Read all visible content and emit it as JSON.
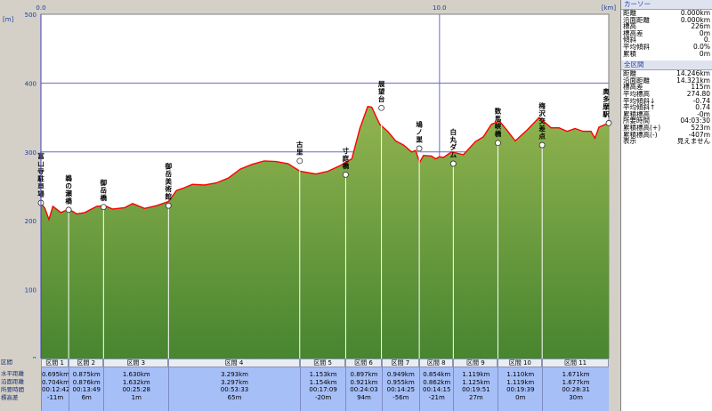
{
  "chart_data": {
    "type": "area",
    "title": "",
    "xlabel": "",
    "ylabel": "",
    "y_unit": "[m]",
    "x_unit": "[km]",
    "xlim": [
      0.0,
      14.246
    ],
    "ylim": [
      0,
      500
    ],
    "y_ticks": [
      "0",
      "100",
      "200",
      "300",
      "400",
      "500"
    ],
    "x_ticks": [
      {
        "value": 0.0,
        "label": "0.0"
      },
      {
        "value": 10.0,
        "label": "10.0"
      }
    ],
    "grid": true,
    "profile": {
      "x": [
        0.0,
        0.1,
        0.2,
        0.3,
        0.5,
        0.7,
        0.9,
        1.1,
        1.4,
        1.6,
        1.8,
        2.1,
        2.3,
        2.6,
        2.9,
        3.2,
        3.4,
        3.6,
        3.8,
        4.1,
        4.4,
        4.7,
        5.0,
        5.3,
        5.6,
        5.9,
        6.2,
        6.5,
        6.9,
        7.2,
        7.5,
        7.8,
        8.0,
        8.2,
        8.3,
        8.5,
        8.7,
        8.9,
        9.1,
        9.3,
        9.4,
        9.5,
        9.6,
        9.8,
        9.9,
        10.0,
        10.1,
        10.3,
        10.6,
        10.9,
        11.1,
        11.3,
        11.5,
        11.7,
        11.9,
        12.2,
        12.5,
        12.8,
        13.0,
        13.2,
        13.4,
        13.6,
        13.8,
        13.9,
        14.0,
        14.246
      ],
      "y": [
        226,
        218,
        202,
        221,
        212,
        217,
        210,
        212,
        221,
        222,
        217,
        219,
        225,
        218,
        222,
        228,
        244,
        248,
        253,
        252,
        255,
        262,
        275,
        282,
        287,
        286,
        283,
        272,
        268,
        272,
        280,
        290,
        334,
        366,
        365,
        340,
        330,
        316,
        310,
        300,
        302,
        285,
        295,
        294,
        290,
        293,
        292,
        300,
        296,
        315,
        322,
        340,
        345,
        331,
        316,
        332,
        350,
        335,
        335,
        330,
        334,
        330,
        330,
        320,
        336,
        342
      ]
    },
    "waypoints": [
      {
        "x": 0.0,
        "y": 226,
        "label": "富山寺駐車場"
      },
      {
        "x": 0.695,
        "y": 216,
        "label": "鵜の瀬橋"
      },
      {
        "x": 1.57,
        "y": 220,
        "label": "御岳橋"
      },
      {
        "x": 3.2,
        "y": 222,
        "label": "御岳美術館"
      },
      {
        "x": 6.493,
        "y": 287,
        "label": "古里"
      },
      {
        "x": 7.646,
        "y": 267,
        "label": "寸庭橋"
      },
      {
        "x": 8.543,
        "y": 364,
        "label": "展望台"
      },
      {
        "x": 9.492,
        "y": 305,
        "label": "鳩ノ巣"
      },
      {
        "x": 10.346,
        "y": 283,
        "label": "白丸ダム"
      },
      {
        "x": 11.465,
        "y": 313,
        "label": "数馬峡橋"
      },
      {
        "x": 12.575,
        "y": 310,
        "label": "梅沢交差点"
      },
      {
        "x": 14.246,
        "y": 342,
        "label": "奥多摩駅"
      }
    ],
    "row_labels": [
      "区間",
      "水平距離",
      "沿面距離",
      "所要時間",
      "標高差"
    ],
    "segments": [
      {
        "start": 0.0,
        "end": 0.695,
        "name": "区間 1",
        "horiz": "0.695km",
        "surface": "0.704km",
        "time": "00:12:42",
        "diff": "-11m"
      },
      {
        "start": 0.695,
        "end": 1.57,
        "name": "区間 2",
        "horiz": "0.875km",
        "surface": "0.876km",
        "time": "00:13:49",
        "diff": "6m"
      },
      {
        "start": 1.57,
        "end": 3.2,
        "name": "区間 3",
        "horiz": "1.630km",
        "surface": "1.632km",
        "time": "00:25:28",
        "diff": "1m"
      },
      {
        "start": 3.2,
        "end": 6.493,
        "name": "区間 4",
        "horiz": "3.293km",
        "surface": "3.297km",
        "time": "00:53:33",
        "diff": "65m"
      },
      {
        "start": 6.493,
        "end": 7.646,
        "name": "区間 5",
        "horiz": "1.153km",
        "surface": "1.154km",
        "time": "00:17:09",
        "diff": "-20m"
      },
      {
        "start": 7.646,
        "end": 8.543,
        "name": "区間 6",
        "horiz": "0.897km",
        "surface": "0.921km",
        "time": "00:24:03",
        "diff": "94m"
      },
      {
        "start": 8.543,
        "end": 9.492,
        "name": "区間 7",
        "horiz": "0.949km",
        "surface": "0.955km",
        "time": "00:14:25",
        "diff": "-56m"
      },
      {
        "start": 9.492,
        "end": 10.346,
        "name": "区間 8",
        "horiz": "0.854km",
        "surface": "0.862km",
        "time": "00:14:15",
        "diff": "-21m"
      },
      {
        "start": 10.346,
        "end": 11.465,
        "name": "区間 9",
        "horiz": "1.119km",
        "surface": "1.125km",
        "time": "00:19:51",
        "diff": "27m"
      },
      {
        "start": 11.465,
        "end": 12.575,
        "name": "区間 10",
        "horiz": "1.110km",
        "surface": "1.119km",
        "time": "00:19:39",
        "diff": "0m"
      },
      {
        "start": 12.575,
        "end": 14.246,
        "name": "区間 11",
        "horiz": "1.671km",
        "surface": "1.677km",
        "time": "00:28:31",
        "diff": "30m"
      }
    ],
    "colors": {
      "fill_top": "#92b450",
      "fill_bottom": "#47852f",
      "line": "#ff0000",
      "plot_bg": "#ffffff",
      "grid": "#6a6ad0"
    }
  },
  "sidebar": {
    "cursor_header": "カーソー",
    "cursor_rows": [
      {
        "label": "距離",
        "value": "0.000km"
      },
      {
        "label": "沿面距離",
        "value": "0.000km"
      },
      {
        "label": "標高",
        "value": "226m"
      },
      {
        "label": "標高差",
        "value": "0m"
      },
      {
        "label": "傾斜",
        "value": "0."
      },
      {
        "label": "平均傾斜",
        "value": "0.0%"
      },
      {
        "label": "累積",
        "value": "0m"
      }
    ],
    "section_header": "全区間",
    "section_rows": [
      {
        "label": "距離",
        "value": "14.246km"
      },
      {
        "label": "沿面距離",
        "value": "14.321km"
      },
      {
        "label": "標高差",
        "value": "115m"
      },
      {
        "label": "平均標高",
        "value": "274.80"
      },
      {
        "label": "平均傾斜↓",
        "value": "-0.74"
      },
      {
        "label": "平均傾斜↑",
        "value": "0.74"
      },
      {
        "label": "累積標高",
        "value": "-0m"
      },
      {
        "label": "所要時間",
        "value": "04:03:30"
      },
      {
        "label": "累積標高(+)",
        "value": "523m"
      },
      {
        "label": "累積標高(-)",
        "value": "-407m"
      },
      {
        "label": "表示",
        "value": "見えません"
      }
    ]
  }
}
